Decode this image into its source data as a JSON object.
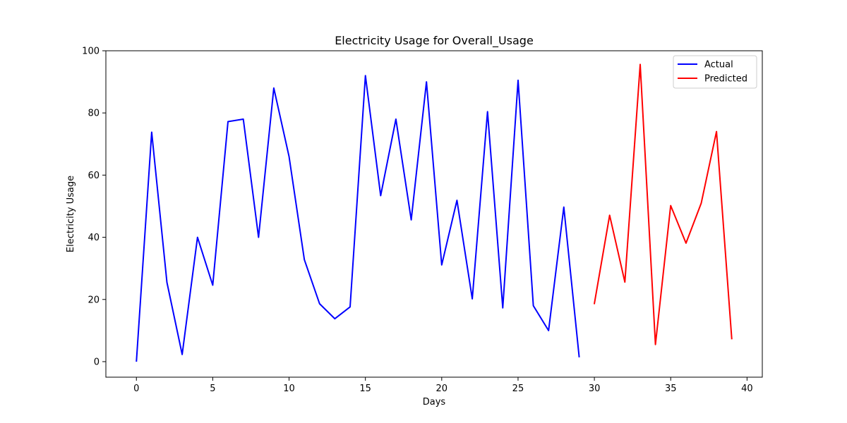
{
  "chart_data": {
    "type": "line",
    "title": "Electricity Usage for Overall_Usage",
    "xlabel": "Days",
    "ylabel": "Electricity Usage",
    "xlim": [
      -2,
      41
    ],
    "ylim": [
      -5,
      100
    ],
    "xticks": [
      0,
      5,
      10,
      15,
      20,
      25,
      30,
      35,
      40
    ],
    "yticks": [
      0,
      20,
      40,
      60,
      80,
      100
    ],
    "grid": false,
    "legend_position": "top-right",
    "series": [
      {
        "name": "Actual",
        "color": "#0000ff",
        "x": [
          0,
          1,
          2,
          3,
          4,
          5,
          6,
          7,
          8,
          9,
          10,
          11,
          12,
          13,
          14,
          15,
          16,
          17,
          18,
          19,
          20,
          21,
          22,
          23,
          24,
          25,
          26,
          27,
          28,
          29
        ],
        "y": [
          0.2,
          73.8,
          25.5,
          2.3,
          40.0,
          24.6,
          77.2,
          78.0,
          40.0,
          88.0,
          66.0,
          32.8,
          18.6,
          13.8,
          17.6,
          92.0,
          53.4,
          78.0,
          45.6,
          90.0,
          31.1,
          51.9,
          20.2,
          80.4,
          17.3,
          90.5,
          18.0,
          10.0,
          49.7,
          1.6
        ]
      },
      {
        "name": "Predicted",
        "color": "#ff0000",
        "x": [
          30,
          31,
          32,
          33,
          34,
          35,
          36,
          37,
          38,
          39
        ],
        "y": [
          18.7,
          47.1,
          25.6,
          95.6,
          5.5,
          50.2,
          38.1,
          51.0,
          74.0,
          7.4
        ]
      }
    ]
  }
}
